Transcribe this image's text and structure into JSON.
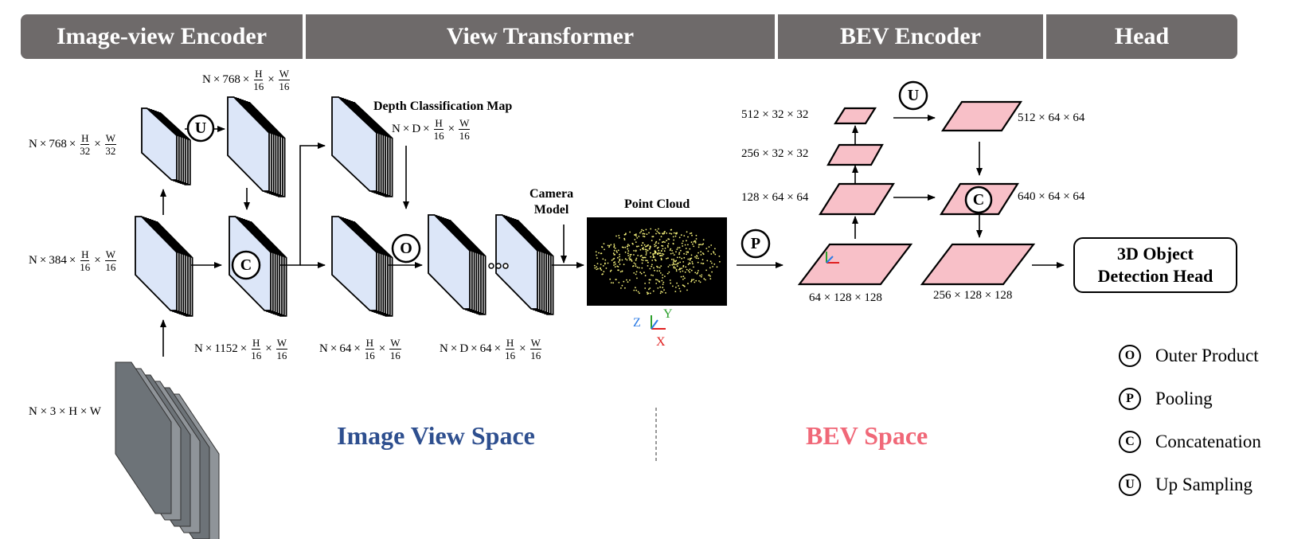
{
  "headers": {
    "image_view_encoder": "Image-view Encoder",
    "view_transformer": "View Transformer",
    "bev_encoder": "BEV Encoder",
    "head": "Head"
  },
  "colors": {
    "header_bg": "#6e6a6a",
    "feature_map_fill": "#dce6f8",
    "bev_fill": "#f8c0c8",
    "image_view_space": "#2e4f8f",
    "bev_space": "#f06878",
    "point_cloud_bg": "#000000",
    "point_cloud_points": "#f4f07a",
    "axis_z": "#2c7be5",
    "axis_y": "#2ca02c",
    "axis_x": "#e02020"
  },
  "shapes": {
    "n": "N",
    "d": "D",
    "h": "H",
    "w": "W",
    "times": "×",
    "d16": "16",
    "d32": "32",
    "c768": "768",
    "c384": "384",
    "c1152": "1152",
    "c64": "64",
    "input_shape": "N × 3 × H × W"
  },
  "titles": {
    "depth_map": "Depth Classification Map",
    "camera_model_1": "Camera",
    "camera_model_2": "Model",
    "point_cloud": "Point Cloud"
  },
  "point_cloud_axes": {
    "z": "Z",
    "y": "Y",
    "x": "X"
  },
  "bev_labels": {
    "l512_32": "512 × 32 × 32",
    "l256_32": "256 × 32 × 32",
    "l128_64": "128 × 64 × 64",
    "l64_128": "64 × 128 × 128",
    "l512_64": "512 × 64 × 64",
    "l640_64": "640 × 64 × 64",
    "l256_128": "256 × 128 × 128"
  },
  "operators": {
    "outer": "O",
    "pool": "P",
    "concat": "C",
    "up": "U"
  },
  "detection_head": {
    "line1": "3D Object",
    "line2": "Detection Head"
  },
  "spaces": {
    "image_view": "Image View Space",
    "bev": "BEV Space"
  },
  "legend": [
    {
      "symbol": "O",
      "label": "Outer Product"
    },
    {
      "symbol": "P",
      "label": "Pooling"
    },
    {
      "symbol": "C",
      "label": "Concatenation"
    },
    {
      "symbol": "U",
      "label": "Up Sampling"
    }
  ]
}
